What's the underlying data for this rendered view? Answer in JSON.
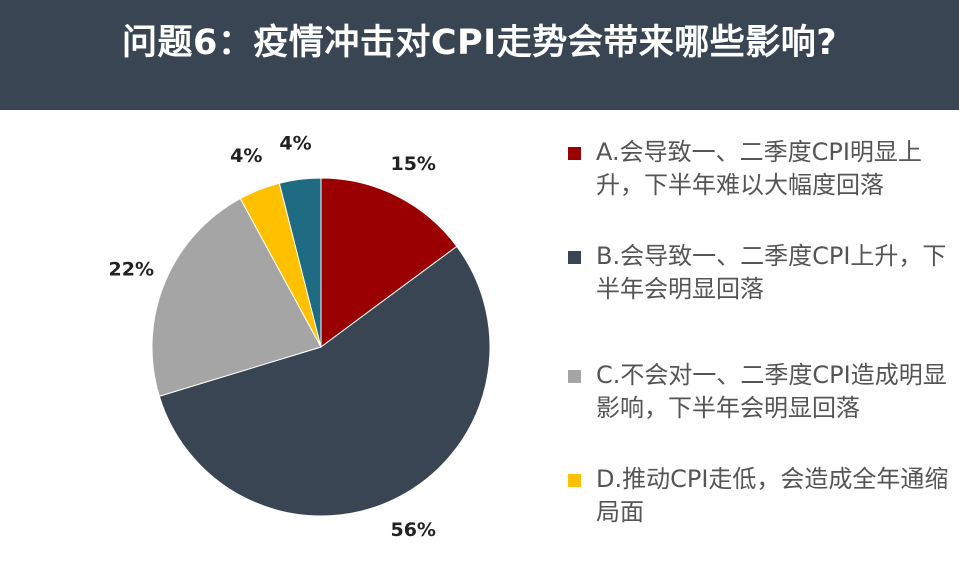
{
  "title": "问题6：疫情冲击对CPI走势会带来哪些影响?",
  "colors": {
    "header_bg": "#3a4554"
  },
  "chart_data": {
    "type": "pie",
    "title": "问题6：疫情冲击对CPI走势会带来哪些影响?",
    "slices": [
      {
        "label": "A.会导致一、二季度CPI明显上升，下半年难以大幅度回落",
        "value": 15,
        "display": "15%",
        "color": "#9b0000"
      },
      {
        "label": "B.会导致一、二季度CPI上升，下半年会明显回落",
        "value": 56,
        "display": "56%",
        "color": "#3a4554"
      },
      {
        "label": "C.不会对一、二季度CPI造成明显影响，下半年会明显回落",
        "value": 22,
        "display": "22%",
        "color": "#a5a5a5"
      },
      {
        "label": "D.推动CPI走低，会造成全年通缩局面",
        "value": 4,
        "display": "4%",
        "color": "#ffc000"
      },
      {
        "label": "",
        "value": 4,
        "display": "4%",
        "color": "#1f6b82"
      }
    ],
    "legend_position": "right"
  }
}
